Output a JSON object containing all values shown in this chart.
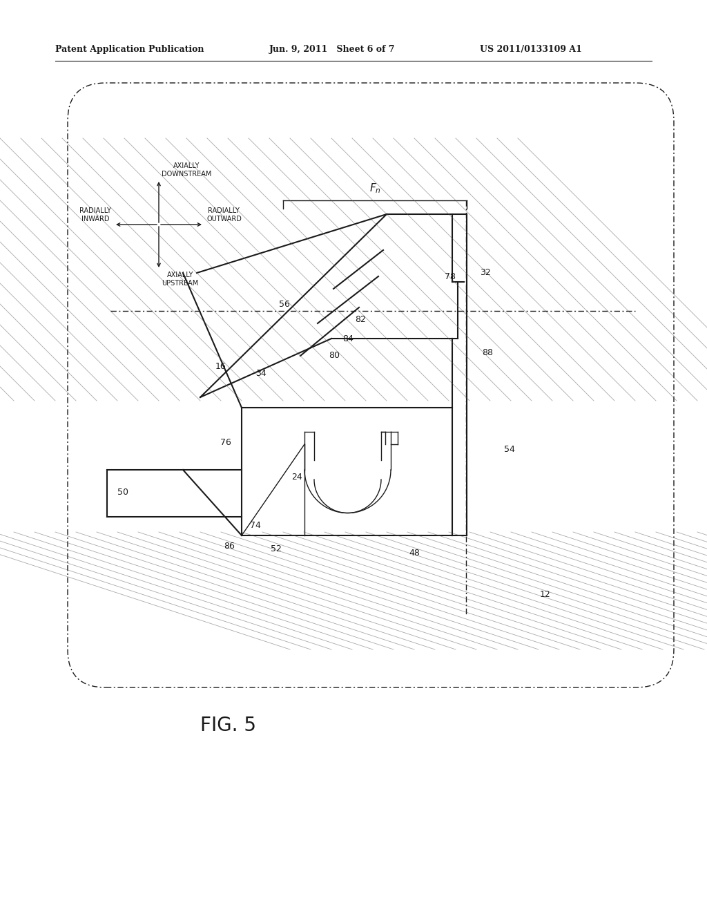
{
  "bg_color": "#ffffff",
  "line_color": "#1a1a1a",
  "header_left": "Patent Application Publication",
  "header_mid": "Jun. 9, 2011   Sheet 6 of 7",
  "header_right": "US 2011/0133109 A1",
  "fig_label": "FIG. 5",
  "font_size_header": 9,
  "font_size_label": 9,
  "font_size_fig": 20,
  "font_size_direction": 8
}
